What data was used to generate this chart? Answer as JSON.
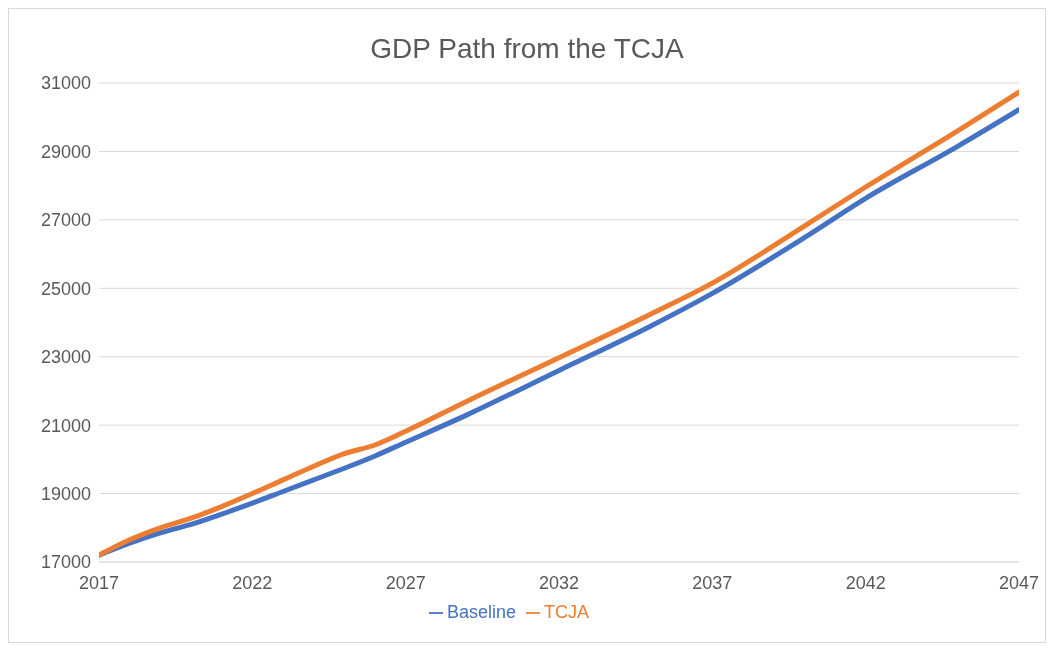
{
  "chart_data": {
    "type": "line",
    "title": "GDP Path from the TCJA",
    "x": [
      2017,
      2018,
      2019,
      2020,
      2021,
      2022,
      2023,
      2024,
      2025,
      2026,
      2027,
      2029,
      2032,
      2035,
      2037,
      2040,
      2042,
      2045,
      2047
    ],
    "series": [
      {
        "name": "Baseline",
        "color": "#4472c4",
        "values": [
          17200,
          17550,
          17850,
          18100,
          18400,
          18720,
          19060,
          19400,
          19740,
          20100,
          20500,
          21300,
          22600,
          23900,
          24850,
          26480,
          27630,
          29150,
          30220
        ]
      },
      {
        "name": "TCJA",
        "color": "#ed7d31",
        "values": [
          17200,
          17650,
          18000,
          18280,
          18620,
          19000,
          19400,
          19800,
          20170,
          20420,
          20820,
          21700,
          22970,
          24250,
          25150,
          26820,
          27960,
          29600,
          30730
        ]
      }
    ],
    "xlim": [
      2017,
      2047
    ],
    "xticks": [
      2017,
      2022,
      2027,
      2032,
      2037,
      2042,
      2047
    ],
    "ylim": [
      17000,
      31000
    ],
    "yticks": [
      17000,
      19000,
      21000,
      23000,
      25000,
      27000,
      29000,
      31000
    ],
    "grid": "y",
    "legend": "bottom",
    "marker": "none",
    "line_style": "solid"
  }
}
